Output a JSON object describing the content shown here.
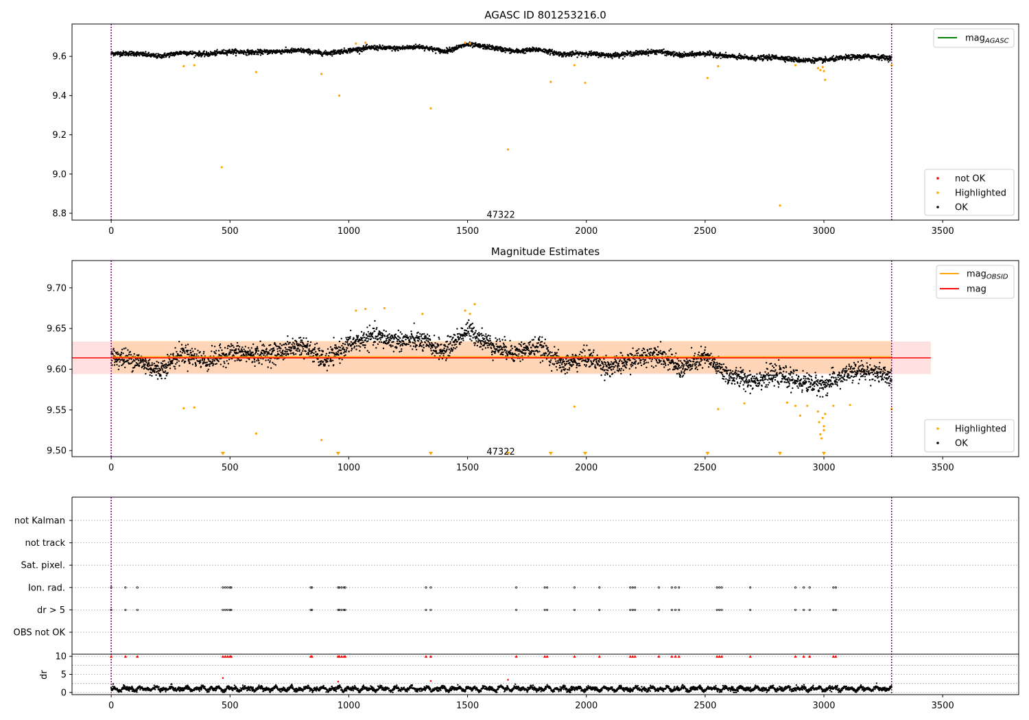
{
  "chart_data": [
    {
      "type": "scatter",
      "title": "AGASC ID 801253216.0",
      "xlim": [
        -165,
        3820
      ],
      "ylim": [
        8.765,
        9.765
      ],
      "xticks": [
        "0",
        "500",
        "1000",
        "1500",
        "2000",
        "2500",
        "3000",
        "3500"
      ],
      "yticks": [
        "8.8",
        "9.0",
        "9.2",
        "9.4",
        "9.6"
      ],
      "vlines": [
        0,
        3285
      ],
      "annotation": {
        "text": "47322",
        "x": 1640,
        "y": 8.77
      },
      "legend_lines": [
        {
          "label": "mag",
          "sub": "AGASC",
          "color": "#008000"
        }
      ],
      "legend_points": [
        {
          "label": "not OK",
          "color": "#ff0000"
        },
        {
          "label": "Highlighted",
          "color": "#ffa500"
        },
        {
          "label": "OK",
          "color": "#000000"
        }
      ],
      "series_ok": {
        "name": "OK",
        "trend_x": [
          0,
          100,
          200,
          300,
          400,
          500,
          600,
          700,
          800,
          900,
          1000,
          1100,
          1200,
          1300,
          1400,
          1500,
          1600,
          1700,
          1800,
          1900,
          2000,
          2100,
          2200,
          2300,
          2400,
          2500,
          2600,
          2700,
          2800,
          2900,
          3000,
          3100,
          3200,
          3285
        ],
        "trend_y": [
          9.615,
          9.615,
          9.6,
          9.62,
          9.61,
          9.625,
          9.62,
          9.625,
          9.63,
          9.615,
          9.63,
          9.645,
          9.64,
          9.65,
          9.625,
          9.66,
          9.645,
          9.625,
          9.635,
          9.61,
          9.615,
          9.605,
          9.615,
          9.625,
          9.605,
          9.615,
          9.6,
          9.59,
          9.595,
          9.58,
          9.58,
          9.595,
          9.6,
          9.59
        ],
        "scatter": 0.012
      },
      "highlighted": [
        {
          "x": 305,
          "y": 9.55
        },
        {
          "x": 350,
          "y": 9.555
        },
        {
          "x": 465,
          "y": 9.035
        },
        {
          "x": 610,
          "y": 9.52
        },
        {
          "x": 885,
          "y": 9.51
        },
        {
          "x": 960,
          "y": 9.4
        },
        {
          "x": 1030,
          "y": 9.665
        },
        {
          "x": 1070,
          "y": 9.67
        },
        {
          "x": 1345,
          "y": 9.335
        },
        {
          "x": 1490,
          "y": 9.67
        },
        {
          "x": 1510,
          "y": 9.665
        },
        {
          "x": 1670,
          "y": 9.125
        },
        {
          "x": 1850,
          "y": 9.47
        },
        {
          "x": 1950,
          "y": 9.555
        },
        {
          "x": 1995,
          "y": 9.465
        },
        {
          "x": 2510,
          "y": 9.49
        },
        {
          "x": 2555,
          "y": 9.55
        },
        {
          "x": 2815,
          "y": 8.84
        },
        {
          "x": 2880,
          "y": 9.555
        },
        {
          "x": 2975,
          "y": 9.54
        },
        {
          "x": 2985,
          "y": 9.53
        },
        {
          "x": 2995,
          "y": 9.545
        },
        {
          "x": 3000,
          "y": 9.525
        },
        {
          "x": 3005,
          "y": 9.48
        },
        {
          "x": 3285,
          "y": 9.555
        }
      ]
    },
    {
      "type": "scatter",
      "title": "Magnitude Estimates",
      "xlim": [
        -165,
        3820
      ],
      "ylim": [
        9.4925,
        9.7335
      ],
      "xticks": [
        "0",
        "500",
        "1000",
        "1500",
        "2000",
        "2500",
        "3000",
        "3500"
      ],
      "yticks": [
        "9.50",
        "9.55",
        "9.60",
        "9.65",
        "9.70"
      ],
      "vlines": [
        0,
        3285
      ],
      "annotation": {
        "text": "47322",
        "x": 1640,
        "y": 9.4935
      },
      "mag": 9.614,
      "mag_band": [
        9.594,
        9.634
      ],
      "mag_band_x": [
        -165,
        3450
      ],
      "obsid_mag": 9.615,
      "obsid_band": [
        9.595,
        9.635
      ],
      "obsid_x": [
        0,
        3285
      ],
      "legend_lines": [
        {
          "label": "mag",
          "sub": "OBSID",
          "color": "#ffa500"
        },
        {
          "label": "mag",
          "sub": "",
          "color": "#ff0000"
        }
      ],
      "legend_points": [
        {
          "label": "Highlighted",
          "color": "#ffa500"
        },
        {
          "label": "OK",
          "color": "#000000"
        }
      ],
      "series_ok": {
        "name": "OK",
        "trend_x": [
          0,
          100,
          200,
          300,
          400,
          500,
          600,
          700,
          800,
          900,
          1000,
          1100,
          1200,
          1300,
          1400,
          1500,
          1600,
          1700,
          1800,
          1900,
          2000,
          2100,
          2200,
          2300,
          2400,
          2500,
          2600,
          2700,
          2800,
          2900,
          3000,
          3100,
          3200,
          3285
        ],
        "trend_y": [
          9.615,
          9.612,
          9.598,
          9.62,
          9.61,
          9.62,
          9.618,
          9.62,
          9.63,
          9.61,
          9.63,
          9.64,
          9.635,
          9.635,
          9.622,
          9.648,
          9.63,
          9.62,
          9.628,
          9.605,
          9.615,
          9.602,
          9.612,
          9.62,
          9.6,
          9.615,
          9.592,
          9.586,
          9.593,
          9.585,
          9.58,
          9.595,
          9.598,
          9.588
        ],
        "scatter": 0.012
      },
      "highlighted": [
        {
          "x": 305,
          "y": 9.552
        },
        {
          "x": 350,
          "y": 9.553
        },
        {
          "x": 610,
          "y": 9.521
        },
        {
          "x": 885,
          "y": 9.513
        },
        {
          "x": 1030,
          "y": 9.672
        },
        {
          "x": 1070,
          "y": 9.674
        },
        {
          "x": 1150,
          "y": 9.675
        },
        {
          "x": 1310,
          "y": 9.668
        },
        {
          "x": 1490,
          "y": 9.672
        },
        {
          "x": 1510,
          "y": 9.668
        },
        {
          "x": 1530,
          "y": 9.68
        },
        {
          "x": 1950,
          "y": 9.554
        },
        {
          "x": 2555,
          "y": 9.551
        },
        {
          "x": 2665,
          "y": 9.558
        },
        {
          "x": 2845,
          "y": 9.559
        },
        {
          "x": 2880,
          "y": 9.555
        },
        {
          "x": 2900,
          "y": 9.543
        },
        {
          "x": 2930,
          "y": 9.555
        },
        {
          "x": 2975,
          "y": 9.548
        },
        {
          "x": 2980,
          "y": 9.535
        },
        {
          "x": 2985,
          "y": 9.52
        },
        {
          "x": 2990,
          "y": 9.515
        },
        {
          "x": 2995,
          "y": 9.54
        },
        {
          "x": 3000,
          "y": 9.53
        },
        {
          "x": 3000,
          "y": 9.525
        },
        {
          "x": 3005,
          "y": 9.545
        },
        {
          "x": 3040,
          "y": 9.555
        },
        {
          "x": 3110,
          "y": 9.556
        },
        {
          "x": 3285,
          "y": 9.551
        }
      ],
      "clipped_low": [
        470,
        955,
        1345,
        1670,
        1850,
        1995,
        2510,
        2815,
        3000
      ]
    },
    {
      "type": "scatter",
      "title": "",
      "xlim": [
        -165,
        3820
      ],
      "xticks": [
        "0",
        "500",
        "1000",
        "1500",
        "2000",
        "2500",
        "3000",
        "3500"
      ],
      "vlines": [
        0,
        3285
      ],
      "flag_rows": [
        "not Kalman",
        "not track",
        "Sat. pixel.",
        "Ion. rad.",
        "dr > 5",
        "OBS not OK"
      ],
      "flag_events_x": [
        0,
        60,
        110,
        470,
        480,
        490,
        500,
        505,
        840,
        845,
        955,
        960,
        970,
        980,
        985,
        1325,
        1345,
        1705,
        1825,
        1835,
        1950,
        2055,
        2185,
        2195,
        2205,
        2305,
        2360,
        2375,
        2390,
        2550,
        2560,
        2570,
        2690,
        2880,
        2915,
        2940,
        3040,
        3050
      ],
      "flag_rows_with_events": [
        "Ion. rad.",
        "dr > 5"
      ],
      "dr": {
        "ylabel": "dr",
        "yticks": [
          "0",
          "5",
          "10"
        ],
        "ylim": [
          -0.6,
          10.6
        ],
        "baseline_mean": 1.0,
        "baseline_scatter": 0.45,
        "outliers": [
          {
            "x": 470,
            "y": 4.0
          },
          {
            "x": 955,
            "y": 3.0
          },
          {
            "x": 1345,
            "y": 3.2
          },
          {
            "x": 1670,
            "y": 3.5
          }
        ],
        "clipped_high": [
          0,
          60,
          110,
          470,
          480,
          490,
          500,
          505,
          840,
          845,
          955,
          960,
          970,
          980,
          985,
          1325,
          1345,
          1705,
          1825,
          1835,
          1950,
          2055,
          2185,
          2195,
          2205,
          2305,
          2360,
          2375,
          2390,
          2550,
          2560,
          2570,
          2690,
          2880,
          2915,
          2940,
          3040,
          3050
        ]
      }
    }
  ]
}
